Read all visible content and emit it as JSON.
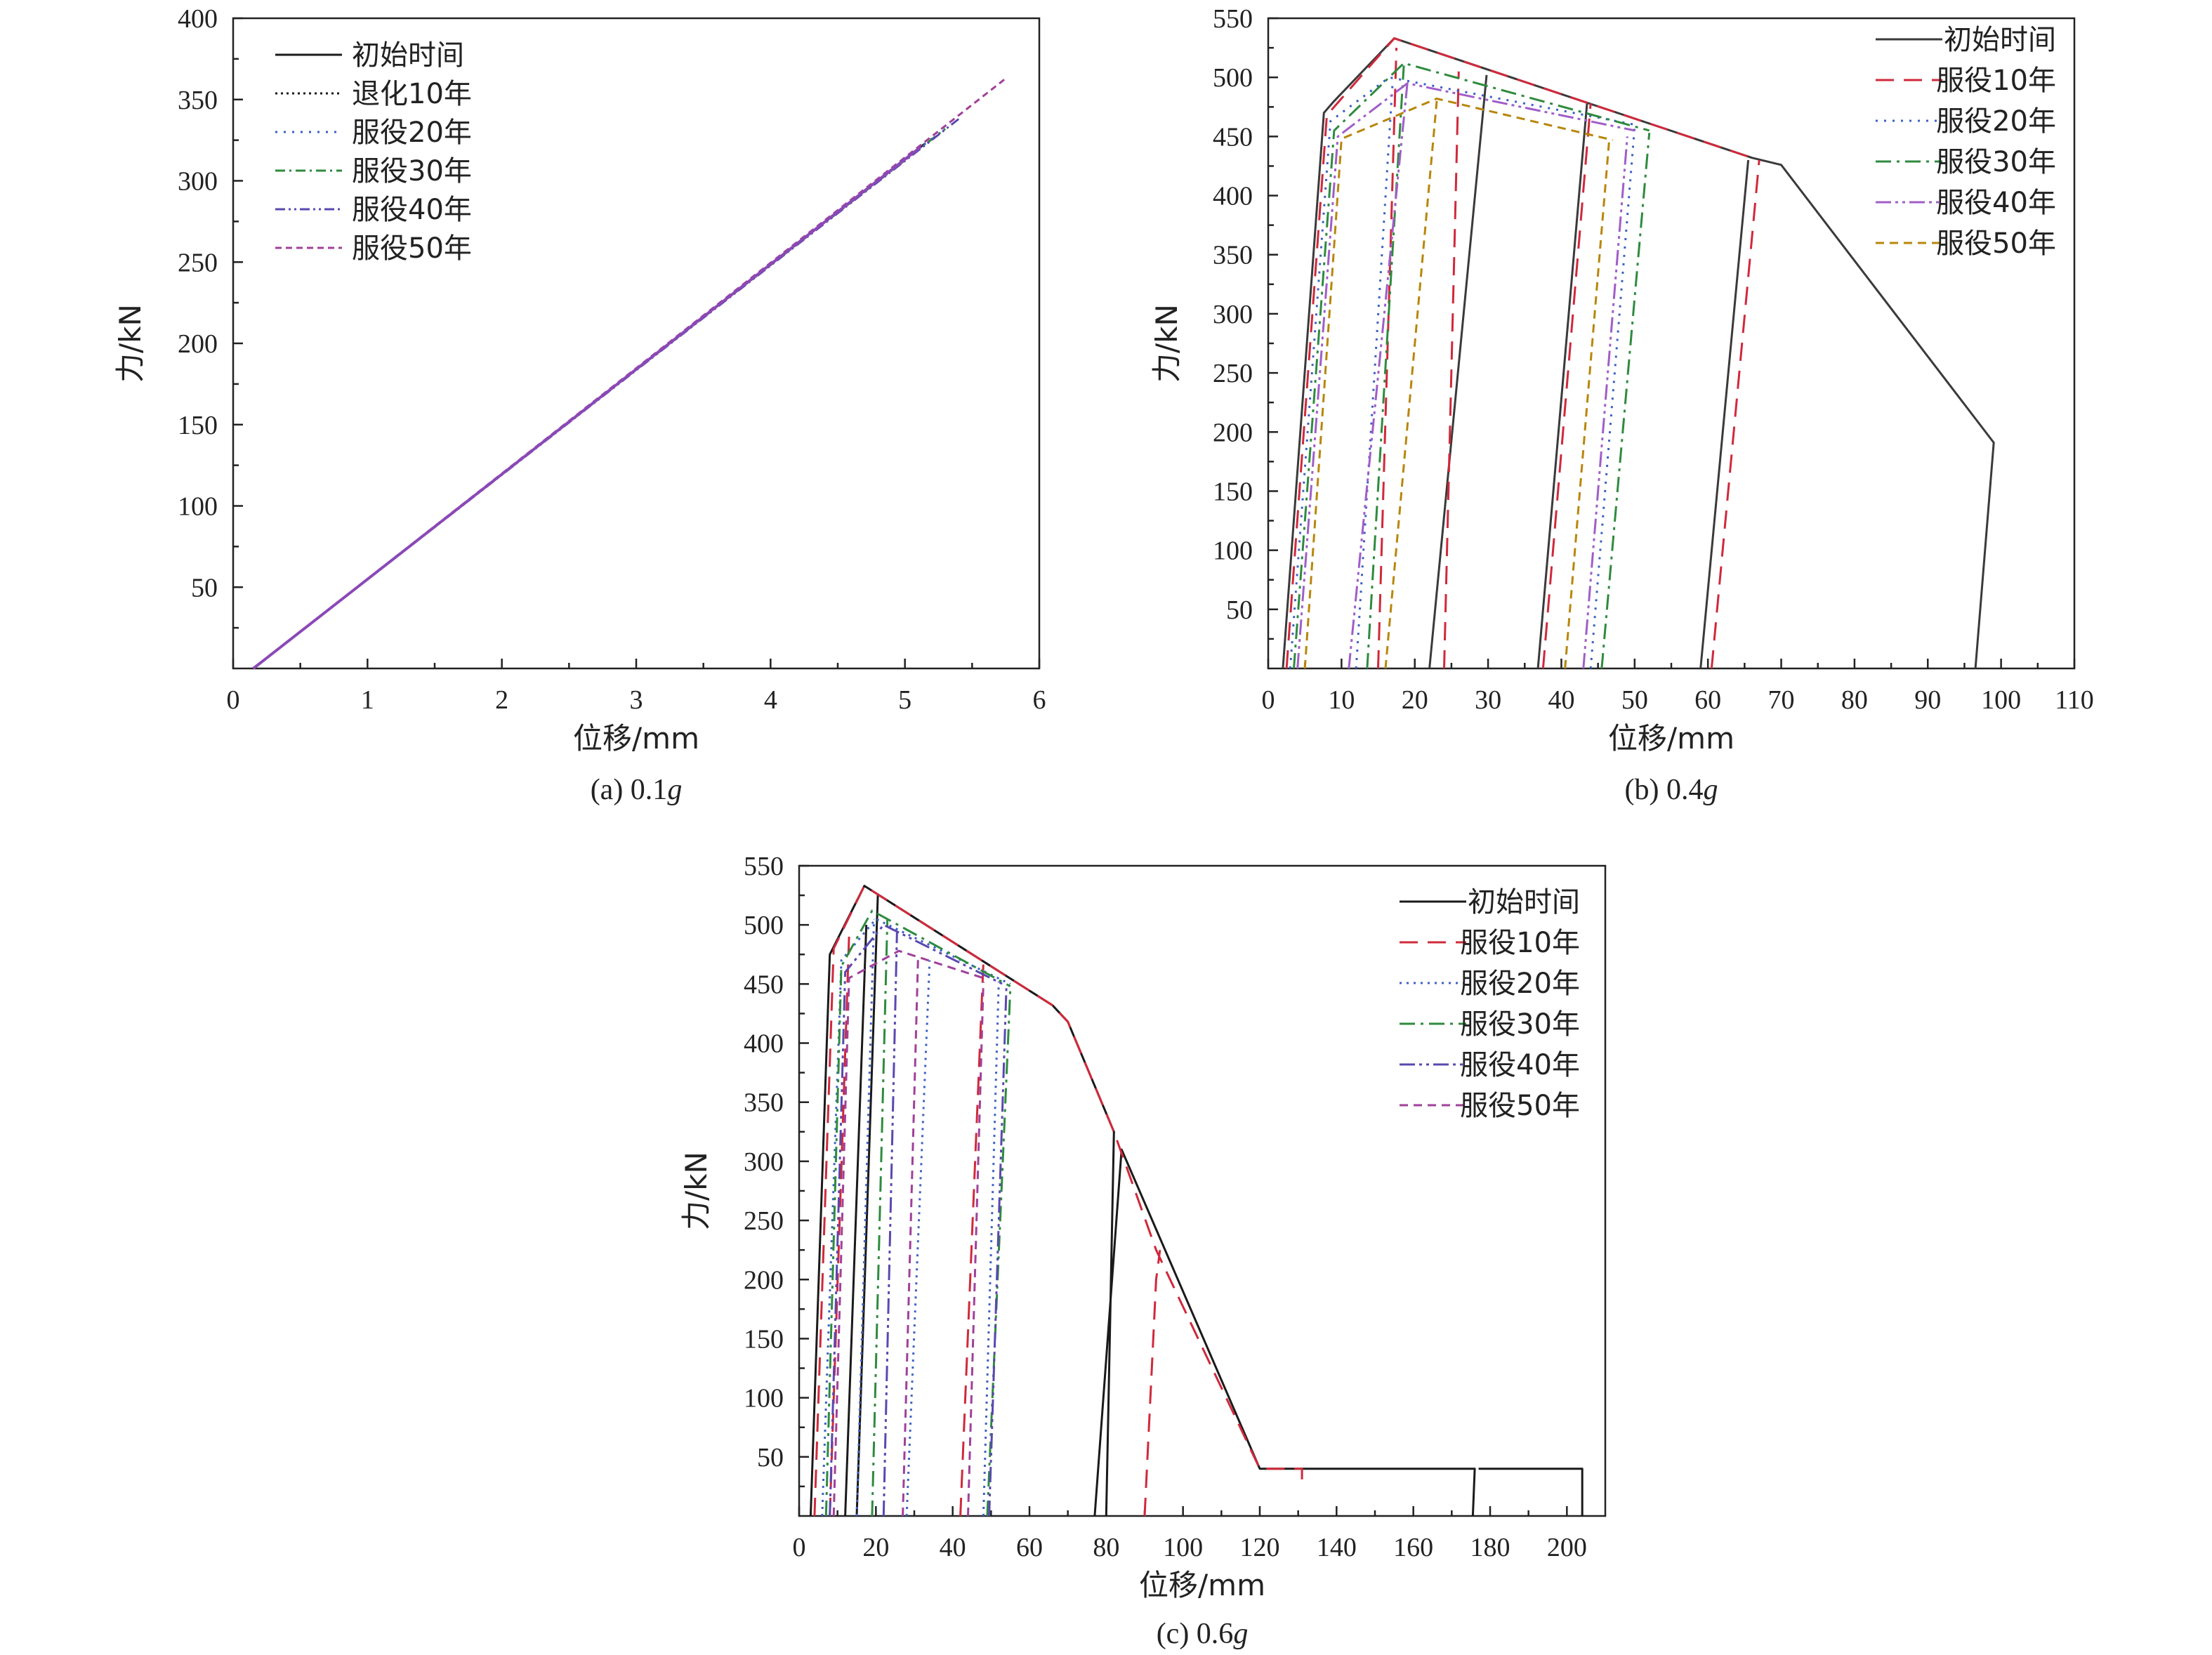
{
  "chart_data": [
    {
      "type": "line",
      "caption": "(a) 0.1",
      "caption_g": "g",
      "xlabel": "位移/mm",
      "ylabel": "力/kN",
      "xlim": [
        0,
        6
      ],
      "ylim": [
        0,
        400
      ],
      "xticks": [
        0,
        1,
        2,
        3,
        4,
        5,
        6
      ],
      "yticks": [
        50,
        100,
        150,
        200,
        250,
        300,
        350,
        400
      ],
      "legend_position": "top-left",
      "grid": false,
      "series": [
        {
          "name": "初始时间",
          "color": "#1a1a1a",
          "dash": "",
          "width": 3,
          "points": [
            [
              0.15,
              0
            ],
            [
              5.15,
              323
            ]
          ]
        },
        {
          "name": "退化10年",
          "color": "#1a1a1a",
          "dash": "3,5",
          "width": 3,
          "points": [
            [
              0.15,
              0
            ],
            [
              5.15,
              323
            ]
          ]
        },
        {
          "name": "服役20年",
          "color": "#3b5fc4",
          "dash": "3,9",
          "width": 3,
          "points": [
            [
              0.15,
              0
            ],
            [
              5.2,
              326
            ]
          ]
        },
        {
          "name": "服役30年",
          "color": "#2e8b3e",
          "dash": "14,6,3,6",
          "width": 3,
          "points": [
            [
              0.15,
              0
            ],
            [
              5.3,
              332
            ]
          ]
        },
        {
          "name": "服役40年",
          "color": "#5a48b0",
          "dash": "14,5,3,5,3,5",
          "width": 3,
          "points": [
            [
              0.15,
              0
            ],
            [
              5.4,
              338
            ]
          ]
        },
        {
          "name": "服役50年",
          "color": "#a0409a",
          "dash": "9,6",
          "width": 3,
          "points": [
            [
              0.15,
              0
            ],
            [
              5.75,
              363
            ]
          ]
        }
      ],
      "overlay": {
        "color": "#8b48b6",
        "width": 4,
        "points": [
          [
            0.15,
            0
          ],
          [
            5.12,
            321
          ]
        ]
      }
    },
    {
      "type": "line",
      "caption": "(b) 0.4",
      "caption_g": "g",
      "xlabel": "位移/mm",
      "ylabel": "力/kN",
      "xlim": [
        0,
        110
      ],
      "ylim": [
        0,
        550
      ],
      "xticks": [
        0,
        10,
        20,
        30,
        40,
        50,
        60,
        70,
        80,
        90,
        100,
        110
      ],
      "yticks": [
        50,
        100,
        150,
        200,
        250,
        300,
        350,
        400,
        450,
        500,
        550
      ],
      "legend_position": "top-right",
      "grid": false,
      "series": [
        {
          "name": "初始时间",
          "color": "#3a3a3a",
          "dash": "",
          "width": 3,
          "points": [
            [
              2,
              0
            ],
            [
              7.6,
              470
            ],
            [
              9,
              480
            ],
            [
              17.2,
              533
            ],
            [
              66,
              432
            ],
            [
              70,
              426
            ],
            [
              99,
              191
            ],
            [
              96.5,
              0
            ],
            [
              null,
              null
            ],
            [
              22,
              0
            ],
            [
              29.8,
              502
            ],
            [
              null,
              null
            ],
            [
              36.8,
              0
            ],
            [
              43.5,
              478
            ],
            [
              null,
              null
            ],
            [
              59,
              0
            ],
            [
              65.5,
              430
            ]
          ]
        },
        {
          "name": "服役10年",
          "color": "#d0293b",
          "dash": "26,14",
          "width": 3,
          "points": [
            [
              2.5,
              0
            ],
            [
              8,
              468
            ],
            [
              17.2,
              533
            ],
            [
              66,
              432
            ],
            [
              null,
              null
            ],
            [
              15,
              0
            ],
            [
              17.5,
              525
            ],
            [
              null,
              null
            ],
            [
              24,
              0
            ],
            [
              26,
              505
            ],
            [
              null,
              null
            ],
            [
              37.5,
              0
            ],
            [
              44,
              478
            ],
            [
              null,
              null
            ],
            [
              60.5,
              0
            ],
            [
              67,
              430
            ]
          ]
        },
        {
          "name": "服役20年",
          "color": "#3b5fc4",
          "dash": "3,9",
          "width": 3,
          "points": [
            [
              3,
              0
            ],
            [
              8.5,
              463
            ],
            [
              16.5,
              500
            ],
            [
              50,
              460
            ],
            [
              null,
              null
            ],
            [
              12,
              0
            ],
            [
              17,
              498
            ],
            [
              null,
              null
            ],
            [
              44,
              0
            ],
            [
              50,
              458
            ]
          ]
        },
        {
          "name": "服役30年",
          "color": "#2e8b3e",
          "dash": "22,8,4,8",
          "width": 3,
          "points": [
            [
              3.5,
              0
            ],
            [
              9,
              455
            ],
            [
              18.5,
              512
            ],
            [
              52,
              455
            ],
            [
              null,
              null
            ],
            [
              13.5,
              0
            ],
            [
              18.5,
              510
            ],
            [
              null,
              null
            ],
            [
              45.5,
              0
            ],
            [
              52,
              453
            ]
          ]
        },
        {
          "name": "服役40年",
          "color": "#a05ec8",
          "dash": "22,6,4,6,4,6",
          "width": 3,
          "points": [
            [
              4,
              0
            ],
            [
              9.5,
              450
            ],
            [
              19,
              495
            ],
            [
              50,
              455
            ],
            [
              null,
              null
            ],
            [
              11,
              0
            ],
            [
              19,
              496
            ],
            [
              null,
              null
            ],
            [
              43,
              0
            ],
            [
              49,
              450
            ]
          ]
        },
        {
          "name": "服役50年",
          "color": "#b8860b",
          "dash": "12,8",
          "width": 3,
          "points": [
            [
              5,
              0
            ],
            [
              10,
              448
            ],
            [
              23,
              482
            ],
            [
              47,
              447
            ],
            [
              null,
              null
            ],
            [
              16,
              0
            ],
            [
              23,
              480
            ],
            [
              null,
              null
            ],
            [
              40.5,
              0
            ],
            [
              46.5,
              445
            ]
          ]
        }
      ]
    },
    {
      "type": "line",
      "caption": "(c) 0.6",
      "caption_g": "g",
      "xlabel": "位移/mm",
      "ylabel": "力/kN",
      "xlim": [
        0,
        210
      ],
      "ylim": [
        0,
        550
      ],
      "xticks": [
        0,
        20,
        40,
        60,
        80,
        100,
        120,
        140,
        160,
        180,
        200
      ],
      "yticks": [
        50,
        100,
        150,
        200,
        250,
        300,
        350,
        400,
        450,
        500,
        550
      ],
      "legend_position": "top-right",
      "grid": false,
      "series": [
        {
          "name": "初始时间",
          "color": "#1a1a1a",
          "dash": "",
          "width": 3,
          "points": [
            [
              3,
              0
            ],
            [
              8,
              475
            ],
            [
              17,
              533
            ],
            [
              66,
              432
            ],
            [
              70,
              418
            ],
            [
              82,
              325
            ],
            [
              80,
              0
            ],
            [
              null,
              null
            ],
            [
              77,
              0
            ],
            [
              84,
              310
            ],
            [
              120,
              40
            ],
            [
              176,
              40
            ],
            [
              175.5,
              0
            ],
            [
              null,
              null
            ],
            [
              177,
              40
            ],
            [
              204,
              40
            ],
            [
              204,
              0
            ],
            [
              null,
              null
            ],
            [
              15,
              0
            ],
            [
              20.5,
              525
            ],
            [
              null,
              null
            ],
            [
              12,
              0
            ],
            [
              17.5,
              500
            ]
          ]
        },
        {
          "name": "服役10年",
          "color": "#d0293b",
          "dash": "26,14",
          "width": 3,
          "points": [
            [
              4,
              0
            ],
            [
              9,
              480
            ],
            [
              17,
              533
            ],
            [
              66,
              432
            ],
            [
              70,
              418
            ],
            [
              82,
              325
            ],
            [
              93,
              225
            ],
            [
              120,
              40
            ],
            [
              131,
              40
            ],
            [
              131,
              25
            ],
            [
              null,
              null
            ],
            [
              90,
              0
            ],
            [
              93,
              200
            ],
            [
              94,
              225
            ],
            [
              null,
              null
            ],
            [
              42,
              0
            ],
            [
              48,
              468
            ],
            [
              null,
              null
            ],
            [
              8,
              0
            ],
            [
              13,
              490
            ]
          ]
        },
        {
          "name": "服役20年",
          "color": "#3b5fc4",
          "dash": "3,7",
          "width": 3,
          "points": [
            [
              6,
              0
            ],
            [
              11,
              470
            ],
            [
              20,
              505
            ],
            [
              55,
              450
            ],
            [
              null,
              null
            ],
            [
              28,
              0
            ],
            [
              34,
              470
            ],
            [
              null,
              null
            ],
            [
              48,
              0
            ],
            [
              52,
              452
            ],
            [
              null,
              null
            ],
            [
              15,
              0
            ],
            [
              19.5,
              505
            ]
          ]
        },
        {
          "name": "服役30年",
          "color": "#2e8b3e",
          "dash": "22,8,4,8",
          "width": 3,
          "points": [
            [
              7,
              0
            ],
            [
              11,
              465
            ],
            [
              19,
              512
            ],
            [
              55,
              448
            ],
            [
              null,
              null
            ],
            [
              49,
              0
            ],
            [
              55,
              445
            ],
            [
              null,
              null
            ],
            [
              19,
              0
            ],
            [
              23,
              505
            ]
          ]
        },
        {
          "name": "服役40年",
          "color": "#5a48b0",
          "dash": "22,6,4,6,4,6",
          "width": 3,
          "points": [
            [
              8,
              0
            ],
            [
              12,
              460
            ],
            [
              22,
              500
            ],
            [
              53,
              450
            ],
            [
              null,
              null
            ],
            [
              49.5,
              0
            ],
            [
              54,
              448
            ],
            [
              null,
              null
            ],
            [
              22,
              0
            ],
            [
              25.5,
              495
            ]
          ]
        },
        {
          "name": "服役50年",
          "color": "#a0409a",
          "dash": "12,8",
          "width": 3,
          "points": [
            [
              9,
              0
            ],
            [
              13,
              455
            ],
            [
              26,
              478
            ],
            [
              48,
              455
            ],
            [
              null,
              null
            ],
            [
              27,
              0
            ],
            [
              31,
              475
            ],
            [
              null,
              null
            ],
            [
              44,
              0
            ],
            [
              48,
              452
            ]
          ]
        }
      ]
    }
  ]
}
